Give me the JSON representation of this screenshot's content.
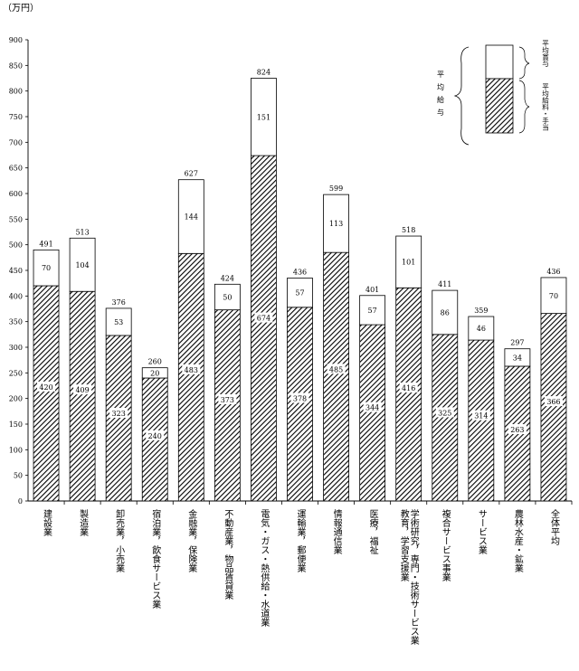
{
  "chart_data": {
    "type": "bar",
    "stacked": true,
    "unit_label": "（万円）",
    "ylim": [
      0,
      900
    ],
    "yticks": [
      0,
      50,
      100,
      150,
      200,
      250,
      300,
      350,
      400,
      450,
      500,
      550,
      600,
      650,
      700,
      750,
      800,
      850,
      900
    ],
    "grid": false,
    "categories": [
      "建設業",
      "製造業",
      "卸売業，小売業",
      "宿泊業，飲食サービス業",
      "金融業，保険業",
      "不動産業，物品賃貸業",
      "電気・ガス・熱供給・水道業",
      "運輸業，郵便業",
      "情報通信業",
      "医療，福祉",
      "学術研究，専門・技術サービス業",
      "複合サービス事業",
      "サービス業",
      "農林水産・鉱業",
      "全体平均"
    ],
    "category_columns": [
      [
        "建設業"
      ],
      [
        "製造業"
      ],
      [
        "卸売業，小売業"
      ],
      [
        "宿泊業，飲食サービス業"
      ],
      [
        "金融業，保険業"
      ],
      [
        "不動産業，物品賃貸業"
      ],
      [
        "電気・ガス・熱供給・水道業"
      ],
      [
        "運輸業，郵便業"
      ],
      [
        "情報通信業"
      ],
      [
        "医療，福祉"
      ],
      [
        "学術研究，専門・技術サービス業",
        "教育，学習支援業"
      ],
      [
        "複合サービス事業"
      ],
      [
        "サービス業"
      ],
      [
        "農林水産・鉱業"
      ],
      [
        "全体平均"
      ]
    ],
    "series": [
      {
        "name": "平均給料・手当",
        "values": [
          420,
          409,
          323,
          240,
          483,
          373,
          674,
          378,
          485,
          344,
          416,
          325,
          314,
          263,
          366
        ]
      },
      {
        "name": "平均賞与",
        "values": [
          70,
          104,
          53,
          20,
          144,
          50,
          151,
          57,
          113,
          57,
          101,
          86,
          46,
          34,
          70
        ]
      }
    ],
    "totals": [
      491,
      513,
      376,
      260,
      627,
      424,
      824,
      436,
      599,
      401,
      518,
      411,
      359,
      297,
      436
    ],
    "legend": {
      "group_label": "平均給与",
      "items": [
        "平均賞与",
        "平均給料・手当"
      ],
      "position": "top-right"
    },
    "colors": {
      "bar_stroke": "#000000",
      "hatch": "#000000",
      "bonus_fill": "#ffffff",
      "salary_label_box": "#ffffff"
    }
  }
}
